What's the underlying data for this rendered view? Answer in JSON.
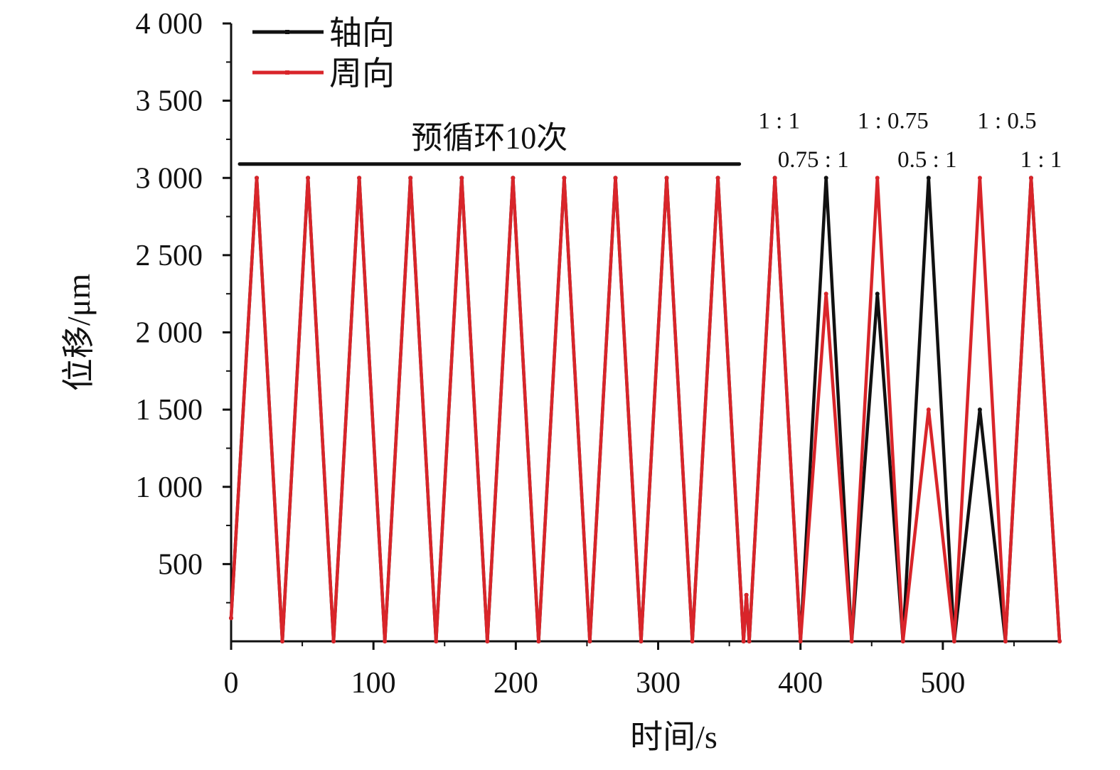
{
  "chart_data": {
    "type": "line",
    "xlabel": "时间/s",
    "ylabel": "位移/μm",
    "xlim": [
      0,
      582
    ],
    "ylim": [
      0,
      4000
    ],
    "x_ticks": [
      0,
      100,
      200,
      300,
      400,
      500
    ],
    "x_tick_labels": [
      "0",
      "100",
      "200",
      "300",
      "400",
      "500"
    ],
    "y_ticks": [
      500,
      1000,
      1500,
      2000,
      2500,
      3000,
      3500,
      4000
    ],
    "y_tick_labels": [
      "500",
      "1 000",
      "1 500",
      "2 000",
      "2 500",
      "3 000",
      "3 500",
      "4 000"
    ],
    "legend": {
      "position": "top-left"
    },
    "series": [
      {
        "name": "轴向",
        "color": "#111111",
        "x": [
          0,
          18,
          36,
          54,
          72,
          90,
          108,
          126,
          144,
          162,
          180,
          198,
          216,
          234,
          252,
          270,
          288,
          306,
          324,
          342,
          360,
          362,
          364,
          382,
          400,
          418,
          436,
          454,
          472,
          490,
          508,
          526,
          544,
          562,
          582
        ],
        "y": [
          150,
          3000,
          0,
          3000,
          0,
          3000,
          0,
          3000,
          0,
          3000,
          0,
          3000,
          0,
          3000,
          0,
          3000,
          0,
          3000,
          0,
          3000,
          0,
          300,
          0,
          3000,
          0,
          3000,
          0,
          2250,
          0,
          3000,
          0,
          1500,
          0,
          3000,
          0
        ]
      },
      {
        "name": "周向",
        "color": "#d9252a",
        "x": [
          0,
          18,
          36,
          54,
          72,
          90,
          108,
          126,
          144,
          162,
          180,
          198,
          216,
          234,
          252,
          270,
          288,
          306,
          324,
          342,
          360,
          362,
          364,
          382,
          400,
          418,
          436,
          454,
          472,
          490,
          508,
          526,
          544,
          562,
          582
        ],
        "y": [
          150,
          3000,
          0,
          3000,
          0,
          3000,
          0,
          3000,
          0,
          3000,
          0,
          3000,
          0,
          3000,
          0,
          3000,
          0,
          3000,
          0,
          3000,
          0,
          300,
          0,
          3000,
          0,
          2250,
          0,
          3000,
          0,
          1500,
          0,
          3000,
          0,
          3000,
          0
        ]
      }
    ],
    "annotations": {
      "precycle": {
        "text": "预循环10次",
        "x_start": 6,
        "x_end": 357,
        "y": 3090
      },
      "ratios": [
        {
          "text": "1 : 1",
          "x": 385,
          "y": 3320
        },
        {
          "text": "0.75 : 1",
          "x": 409,
          "y": 3070
        },
        {
          "text": "1 : 0.75",
          "x": 465,
          "y": 3320
        },
        {
          "text": "0.5 : 1",
          "x": 489,
          "y": 3070
        },
        {
          "text": "1 : 0.5",
          "x": 545,
          "y": 3320
        },
        {
          "text": "1 : 1",
          "x": 569,
          "y": 3070
        }
      ]
    }
  }
}
